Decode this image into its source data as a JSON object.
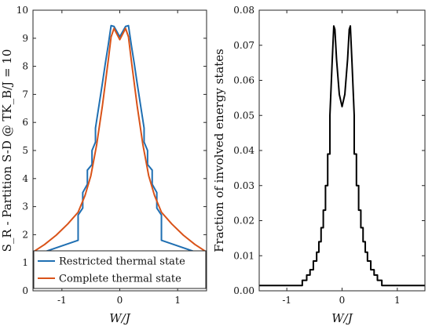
{
  "chart_data": [
    {
      "type": "line",
      "xlabel": "W/J",
      "ylabel": "S_R - Partition S-D @ TK_B/J = 10",
      "xlim": [
        -1.5,
        1.5
      ],
      "ylim": [
        0,
        10
      ],
      "xticks": [
        -1,
        0,
        1
      ],
      "yticks": [
        0,
        1,
        2,
        3,
        4,
        5,
        6,
        7,
        8,
        9,
        10
      ],
      "grid": false,
      "legend_position": "bottom-right",
      "series": [
        {
          "name": "Restricted thermal state",
          "color": "#1f6fb2",
          "x": [
            -1.5,
            -0.72,
            -0.72,
            -0.64,
            -0.64,
            -0.56,
            -0.56,
            -0.48,
            -0.48,
            -0.42,
            -0.42,
            -0.36,
            -0.3,
            -0.25,
            -0.2,
            -0.15,
            -0.1,
            0,
            0.1,
            0.15,
            0.2,
            0.25,
            0.3,
            0.36,
            0.42,
            0.42,
            0.48,
            0.48,
            0.56,
            0.56,
            0.64,
            0.64,
            0.72,
            0.72,
            1.5
          ],
          "y": [
            1.25,
            1.8,
            2.7,
            2.95,
            3.5,
            3.8,
            4.3,
            4.5,
            5.0,
            5.3,
            5.8,
            6.6,
            7.4,
            8.1,
            8.75,
            9.45,
            9.42,
            9.05,
            9.42,
            9.45,
            8.75,
            8.1,
            7.4,
            6.6,
            5.8,
            5.3,
            5.0,
            4.5,
            4.3,
            3.8,
            3.5,
            2.95,
            2.7,
            1.8,
            1.25
          ]
        },
        {
          "name": "Complete thermal state",
          "color": "#d95319",
          "x": [
            -1.5,
            -1.3,
            -1.1,
            -0.9,
            -0.72,
            -0.6,
            -0.5,
            -0.4,
            -0.3,
            -0.2,
            -0.15,
            -0.1,
            0,
            0.1,
            0.15,
            0.2,
            0.3,
            0.4,
            0.5,
            0.6,
            0.72,
            0.9,
            1.1,
            1.3,
            1.5
          ],
          "y": [
            1.38,
            1.65,
            1.98,
            2.38,
            2.8,
            3.4,
            4.1,
            5.2,
            6.6,
            8.2,
            9.05,
            9.35,
            8.95,
            9.35,
            9.05,
            8.2,
            6.6,
            5.2,
            4.1,
            3.4,
            2.8,
            2.38,
            1.98,
            1.65,
            1.38
          ]
        }
      ]
    },
    {
      "type": "line",
      "xlabel": "W/J",
      "ylabel": "Fraction of involved energy states",
      "xlim": [
        -1.5,
        1.5
      ],
      "ylim": [
        0,
        0.08
      ],
      "xticks": [
        -1,
        0,
        1
      ],
      "yticks": [
        0,
        0.01,
        0.02,
        0.03,
        0.04,
        0.05,
        0.06,
        0.07,
        0.08
      ],
      "grid": false,
      "series": [
        {
          "color": "#000000",
          "x": [
            -1.5,
            -0.72,
            -0.72,
            -0.64,
            -0.64,
            -0.58,
            -0.58,
            -0.52,
            -0.52,
            -0.46,
            -0.46,
            -0.42,
            -0.42,
            -0.38,
            -0.38,
            -0.34,
            -0.34,
            -0.3,
            -0.3,
            -0.26,
            -0.26,
            -0.22,
            -0.22,
            -0.18,
            -0.15,
            -0.13,
            -0.1,
            -0.05,
            0,
            0.05,
            0.1,
            0.13,
            0.15,
            0.18,
            0.22,
            0.22,
            0.26,
            0.26,
            0.3,
            0.3,
            0.34,
            0.34,
            0.38,
            0.38,
            0.42,
            0.42,
            0.46,
            0.46,
            0.52,
            0.52,
            0.58,
            0.58,
            0.64,
            0.64,
            0.72,
            0.72,
            1.5
          ],
          "y": [
            0.0015,
            0.0015,
            0.003,
            0.003,
            0.0045,
            0.0045,
            0.006,
            0.006,
            0.0085,
            0.0085,
            0.011,
            0.011,
            0.014,
            0.014,
            0.018,
            0.018,
            0.023,
            0.023,
            0.03,
            0.03,
            0.039,
            0.039,
            0.05,
            0.065,
            0.0755,
            0.0745,
            0.066,
            0.056,
            0.0525,
            0.056,
            0.066,
            0.0745,
            0.0755,
            0.065,
            0.05,
            0.039,
            0.039,
            0.03,
            0.03,
            0.023,
            0.023,
            0.018,
            0.018,
            0.014,
            0.014,
            0.011,
            0.011,
            0.0085,
            0.0085,
            0.006,
            0.006,
            0.0045,
            0.0045,
            0.003,
            0.003,
            0.0015,
            0.0015
          ]
        }
      ]
    }
  ]
}
